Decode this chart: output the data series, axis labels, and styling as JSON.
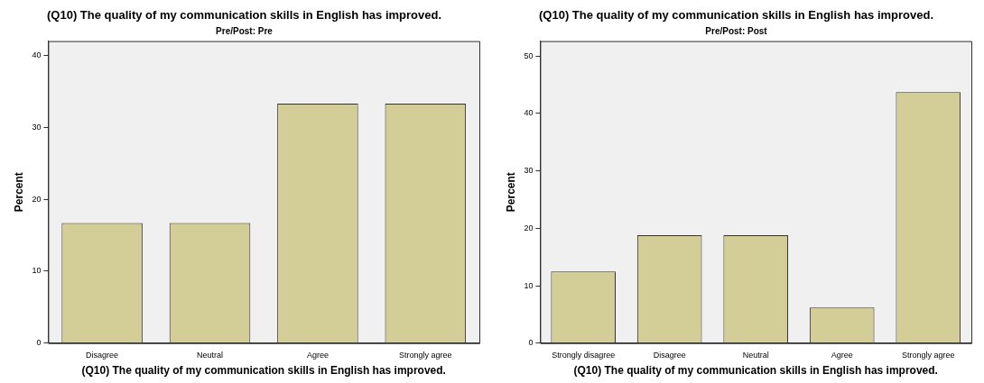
{
  "chart_data": [
    {
      "type": "bar",
      "title": "(Q10) The quality of my communication skills in English has improved.",
      "subtitle": "Pre/Post: Pre",
      "xlabel": "(Q10) The quality of my communication skills in English has improved.",
      "ylabel": "Percent",
      "categories": [
        "Disagree",
        "Neutral",
        "Agree",
        "Strongly agree"
      ],
      "values": [
        16.7,
        16.7,
        33.3,
        33.3
      ],
      "color": "#d3ce98",
      "ylim": [
        0,
        42
      ],
      "yticks": [
        0,
        10,
        20,
        30,
        40
      ],
      "grid": false,
      "legend": false
    },
    {
      "type": "bar",
      "title": "(Q10) The quality of my communication skills in English has improved.",
      "subtitle": "Pre/Post: Post",
      "xlabel": "(Q10) The quality of my communication skills in English has improved.",
      "ylabel": "Percent",
      "categories": [
        "Strongly disagree",
        "Disagree",
        "Neutral",
        "Agree",
        "Strongly agree"
      ],
      "values": [
        12.5,
        18.8,
        18.8,
        6.2,
        43.7
      ],
      "color": "#d3ce98",
      "ylim": [
        0,
        52.6
      ],
      "yticks": [
        0,
        10,
        20,
        30,
        40,
        50
      ],
      "grid": false,
      "legend": false
    }
  ]
}
